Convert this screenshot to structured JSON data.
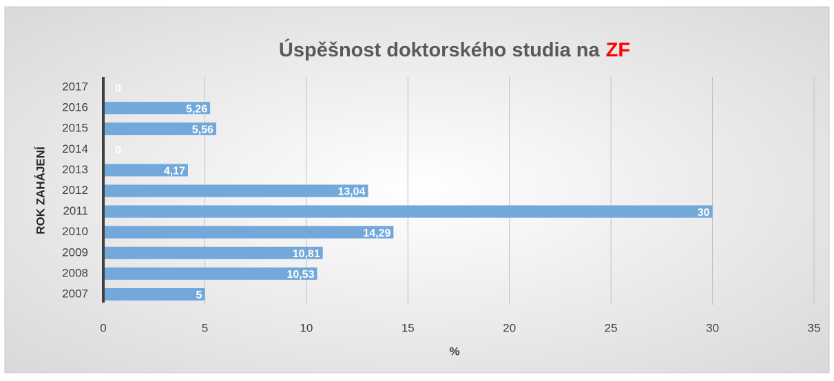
{
  "chart_data": {
    "type": "bar",
    "orientation": "horizontal",
    "title": [
      "Úspěšnost doktorského studia na",
      "ZF"
    ],
    "title_highlight_color": "#ff0000",
    "xlabel": "%",
    "ylabel": "ROK ZAHÁJENÍ",
    "categories": [
      "2007",
      "2008",
      "2009",
      "2010",
      "2011",
      "2012",
      "2013",
      "2014",
      "2015",
      "2016",
      "2017"
    ],
    "values": [
      5,
      10.53,
      10.81,
      14.29,
      30,
      13.04,
      4.17,
      0,
      5.56,
      5.26,
      0
    ],
    "value_labels": [
      "5",
      "10,53",
      "10,81",
      "14,29",
      "30",
      "13,04",
      "4,17",
      "0",
      "5,56",
      "5,26",
      "0"
    ],
    "color": "#73a8da",
    "xlim": [
      0,
      35
    ],
    "xticks": [
      0,
      5,
      10,
      15,
      20,
      25,
      30,
      35
    ],
    "grid": true
  }
}
